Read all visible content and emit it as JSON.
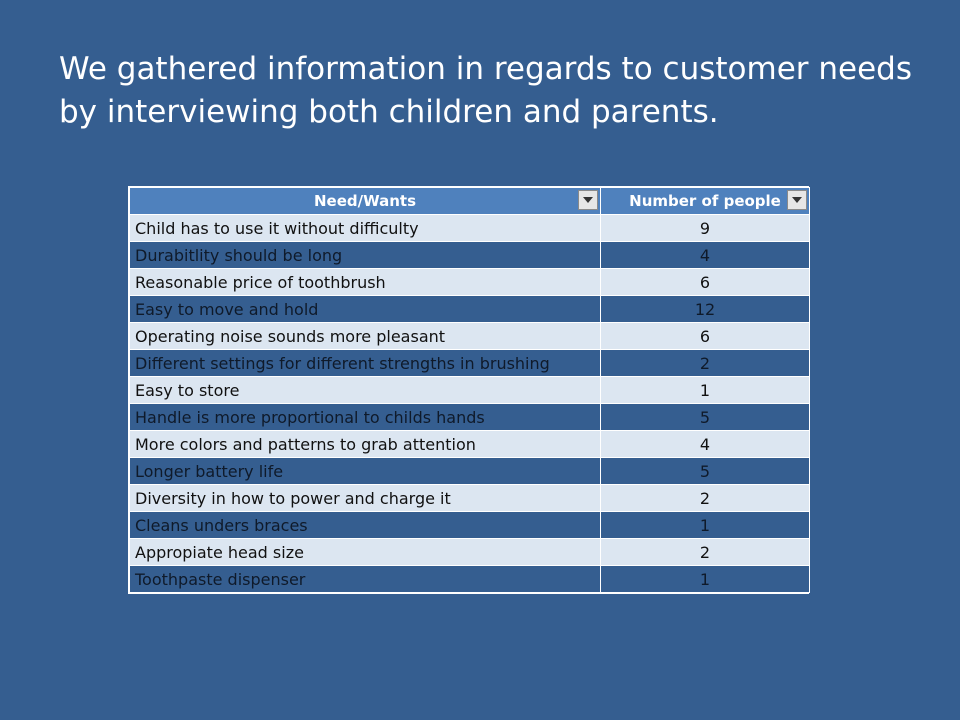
{
  "slide": {
    "title_line1": "We gathered information in regards to customer needs",
    "title_line2": "by interviewing both children and parents."
  },
  "table": {
    "headers": [
      "Need/Wants",
      "Number of people"
    ],
    "filter_icon": "dropdown-arrow-icon",
    "rows": [
      {
        "need": "Child has to use it without difficulty",
        "count": "9"
      },
      {
        "need": "Durabitlity should be long",
        "count": "4"
      },
      {
        "need": "Reasonable price of toothbrush",
        "count": "6"
      },
      {
        "need": "Easy to move and hold",
        "count": "12"
      },
      {
        "need": "Operating noise sounds more pleasant",
        "count": "6"
      },
      {
        "need": "Different settings for different strengths  in brushing",
        "count": "2"
      },
      {
        "need": "Easy to store",
        "count": "1"
      },
      {
        "need": "Handle is more proportional to childs hands",
        "count": "5"
      },
      {
        "need": "More colors and patterns to grab attention",
        "count": "4"
      },
      {
        "need": "Longer battery life",
        "count": "5"
      },
      {
        "need": "Diversity in how to power and charge it",
        "count": "2"
      },
      {
        "need": "Cleans unders braces",
        "count": "1"
      },
      {
        "need": "Appropiate head size",
        "count": "2"
      },
      {
        "need": "Toothpaste dispenser",
        "count": "1"
      }
    ]
  },
  "colors": {
    "background": "#355E90",
    "header": "#4F81BD",
    "row_light": "#DCE6F1",
    "row_dark": "#355E90"
  }
}
